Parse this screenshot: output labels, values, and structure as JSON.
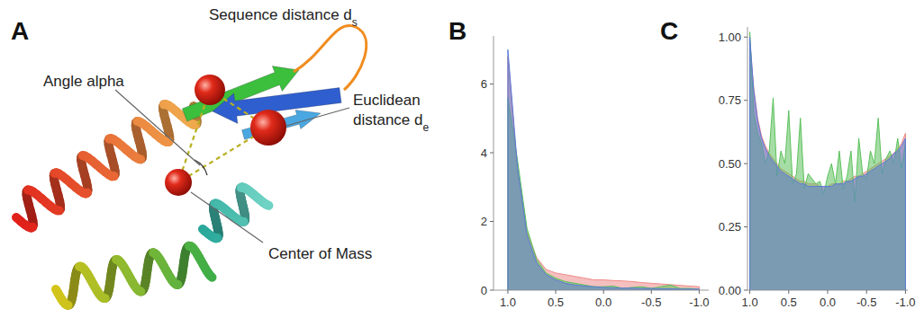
{
  "diagram": {
    "letter": "A",
    "labels": [
      {
        "text": "Sequence distance d",
        "sub": "s"
      },
      {
        "text": "Euclidean"
      },
      {
        "text": "distance d",
        "sub": "e"
      },
      {
        "text": "Angle alpha"
      },
      {
        "text": "Center of Mass"
      }
    ]
  },
  "chart_data": [
    {
      "type": "area",
      "title": "B",
      "x": [
        1,
        0.9,
        0.8,
        0.7,
        0.6,
        0.5,
        0.4,
        0.3,
        0.2,
        0.1,
        0,
        -0.1,
        -0.2,
        -0.3,
        -0.4,
        -0.5,
        -0.6,
        -0.7,
        -0.8,
        -0.9,
        -1
      ],
      "series": [
        {
          "color": "#ee8a8a",
          "values": [
            6.8,
            3.5,
            1.7,
            0.95,
            0.6,
            0.5,
            0.45,
            0.4,
            0.35,
            0.3,
            0.3,
            0.28,
            0.27,
            0.25,
            0.22,
            0.2,
            0.18,
            0.16,
            0.14,
            0.12,
            0.1
          ]
        },
        {
          "color": "#5cc15c",
          "values": [
            5.6,
            3.8,
            1.8,
            0.9,
            0.5,
            0.35,
            0.25,
            0.2,
            0.15,
            0.1,
            0.1,
            0.12,
            0.05,
            0.08,
            0.1,
            0.05,
            0.1,
            0.15,
            0.05,
            0.05,
            0.02
          ]
        },
        {
          "color": "#5b7bd5",
          "values": [
            7.0,
            3.6,
            1.6,
            0.8,
            0.45,
            0.3,
            0.2,
            0.15,
            0.12,
            0.1,
            0.08,
            0.07,
            0.06,
            0.06,
            0.05,
            0.05,
            0.04,
            0.04,
            0.03,
            0.03,
            0.03
          ]
        }
      ],
      "xlim": [
        1.15,
        -1.1
      ],
      "xticks": [
        {
          "value": 1,
          "label": "1.0"
        },
        0.5,
        {
          "value": 0,
          "label": "0.0"
        },
        -0.5,
        {
          "value": -1,
          "label": "-1.0"
        }
      ],
      "ylim": [
        0,
        7.4
      ],
      "yticks": [
        0,
        2,
        4,
        6
      ],
      "grid": false
    },
    {
      "type": "area",
      "title": "C",
      "x": [
        1,
        0.95,
        0.9,
        0.85,
        0.8,
        0.75,
        0.7,
        0.65,
        0.6,
        0.55,
        0.5,
        0.45,
        0.4,
        0.35,
        0.3,
        0.25,
        0.2,
        0.15,
        0.1,
        0.05,
        0,
        -0.05,
        -0.1,
        -0.15,
        -0.2,
        -0.25,
        -0.3,
        -0.35,
        -0.4,
        -0.45,
        -0.5,
        -0.55,
        -0.6,
        -0.65,
        -0.7,
        -0.75,
        -0.8,
        -0.85,
        -0.9,
        -0.95,
        -1
      ],
      "series": [
        {
          "color": "#ee8a8a",
          "values": [
            0.98,
            0.8,
            0.68,
            0.61,
            0.57,
            0.54,
            0.52,
            0.5,
            0.48,
            0.47,
            0.46,
            0.45,
            0.44,
            0.43,
            0.43,
            0.42,
            0.42,
            0.42,
            0.41,
            0.41,
            0.41,
            0.42,
            0.42,
            0.42,
            0.43,
            0.43,
            0.44,
            0.45,
            0.45,
            0.46,
            0.47,
            0.48,
            0.49,
            0.5,
            0.51,
            0.52,
            0.53,
            0.54,
            0.56,
            0.58,
            0.62
          ]
        },
        {
          "color": "#5cc15c",
          "values": [
            1.02,
            0.7,
            0.62,
            0.58,
            0.5,
            0.55,
            0.76,
            0.45,
            0.55,
            0.5,
            0.71,
            0.42,
            0.46,
            0.68,
            0.4,
            0.46,
            0.44,
            0.42,
            0.43,
            0.38,
            0.45,
            0.5,
            0.42,
            0.55,
            0.4,
            0.45,
            0.55,
            0.35,
            0.6,
            0.46,
            0.44,
            0.55,
            0.5,
            0.68,
            0.46,
            0.52,
            0.55,
            0.5,
            0.6,
            0.48,
            0.58
          ]
        },
        {
          "color": "#5b7bd5",
          "values": [
            1.0,
            0.79,
            0.67,
            0.6,
            0.56,
            0.53,
            0.51,
            0.49,
            0.47,
            0.46,
            0.45,
            0.44,
            0.43,
            0.42,
            0.42,
            0.41,
            0.41,
            0.41,
            0.41,
            0.41,
            0.41,
            0.41,
            0.42,
            0.42,
            0.42,
            0.43,
            0.43,
            0.44,
            0.45,
            0.45,
            0.46,
            0.47,
            0.48,
            0.49,
            0.5,
            0.51,
            0.52,
            0.54,
            0.55,
            0.57,
            0.6
          ]
        }
      ],
      "xlim": [
        1.03,
        -1.03
      ],
      "xticks": [
        {
          "value": 1,
          "label": "1.0"
        },
        0.5,
        {
          "value": 0,
          "label": "0.0"
        },
        -0.5,
        {
          "value": -1,
          "label": "-1.0"
        }
      ],
      "ylim": [
        0,
        1.04
      ],
      "yticks": [
        {
          "value": 0,
          "label": "0.00"
        },
        {
          "value": 0.25,
          "label": "0.25"
        },
        {
          "value": 0.5,
          "label": "0.50"
        },
        {
          "value": 0.75,
          "label": "0.75"
        },
        {
          "value": 1,
          "label": "1.00"
        }
      ],
      "grid": false
    }
  ]
}
